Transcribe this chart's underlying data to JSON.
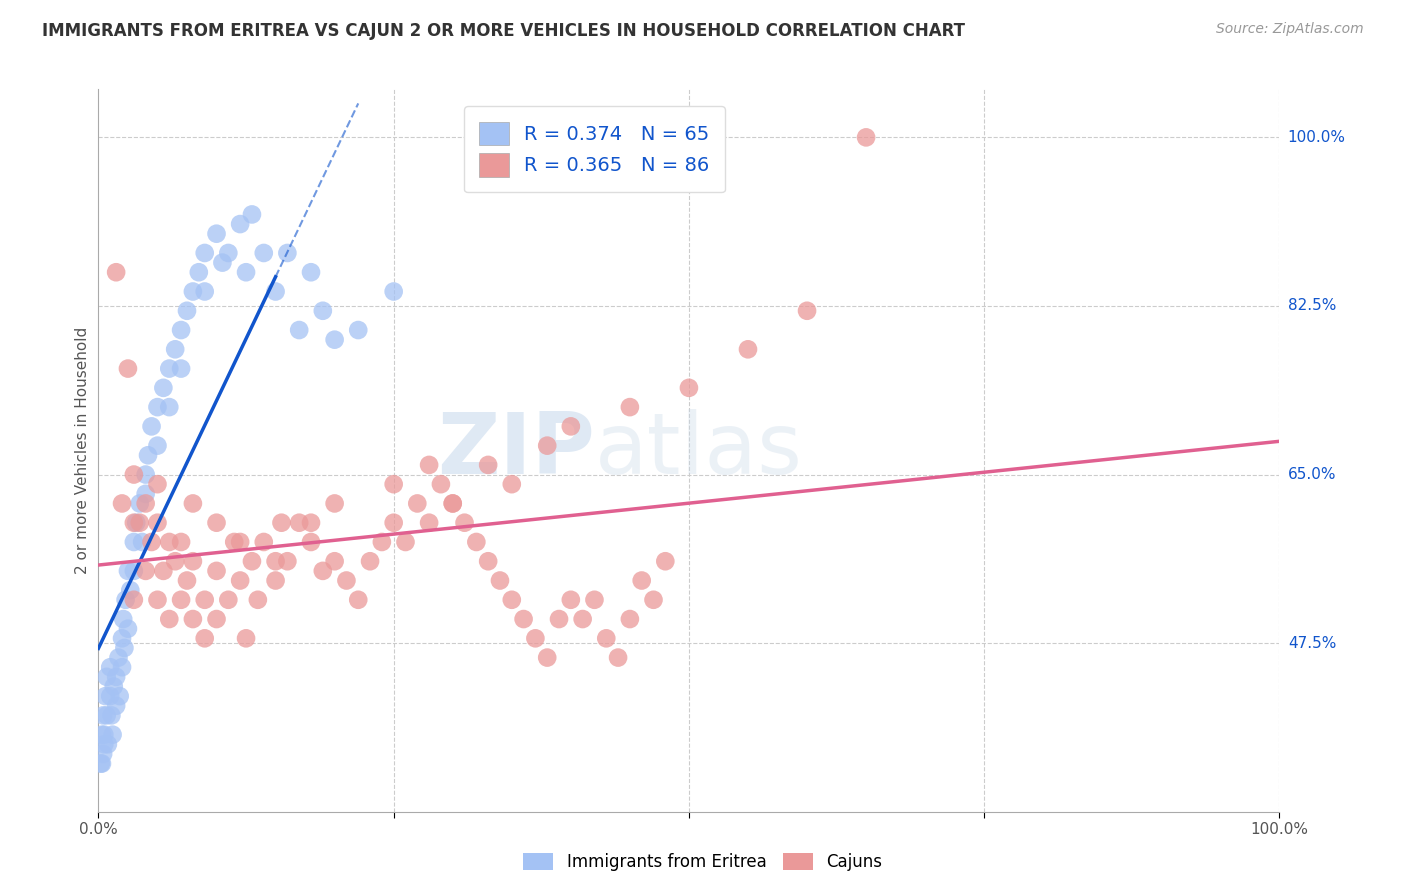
{
  "title": "IMMIGRANTS FROM ERITREA VS CAJUN 2 OR MORE VEHICLES IN HOUSEHOLD CORRELATION CHART",
  "source": "Source: ZipAtlas.com",
  "ylabel": "2 or more Vehicles in Household",
  "xlim": [
    0,
    100
  ],
  "ylim": [
    30,
    105
  ],
  "yticks": [
    47.5,
    65.0,
    82.5,
    100.0
  ],
  "xtick_labels": [
    "0.0%",
    "",
    "",
    "",
    "100.0%"
  ],
  "ytick_labels": [
    "47.5%",
    "65.0%",
    "82.5%",
    "100.0%"
  ],
  "blue_R": 0.374,
  "blue_N": 65,
  "pink_R": 0.365,
  "pink_N": 86,
  "blue_color": "#a4c2f4",
  "pink_color": "#ea9999",
  "blue_line_color": "#1155cc",
  "pink_line_color": "#e06090",
  "background_color": "#ffffff",
  "grid_color": "#cccccc",
  "legend_entries": [
    "Immigrants from Eritrea",
    "Cajuns"
  ],
  "blue_x": [
    0.3,
    0.5,
    0.7,
    0.8,
    1.0,
    1.0,
    1.1,
    1.2,
    1.3,
    1.5,
    1.5,
    1.7,
    1.8,
    2.0,
    2.0,
    2.1,
    2.2,
    2.3,
    2.5,
    2.5,
    2.7,
    3.0,
    3.0,
    3.2,
    3.5,
    3.7,
    4.0,
    4.0,
    4.2,
    4.5,
    5.0,
    5.0,
    5.5,
    6.0,
    6.0,
    6.5,
    7.0,
    7.0,
    7.5,
    8.0,
    8.5,
    9.0,
    9.0,
    10.0,
    10.5,
    11.0,
    12.0,
    12.5,
    13.0,
    14.0,
    15.0,
    16.0,
    17.0,
    18.0,
    19.0,
    20.0,
    22.0,
    25.0,
    0.2,
    0.3,
    0.4,
    0.4,
    0.5,
    0.6,
    0.7
  ],
  "blue_y": [
    35,
    38,
    40,
    37,
    42,
    45,
    40,
    38,
    43,
    44,
    41,
    46,
    42,
    48,
    45,
    50,
    47,
    52,
    49,
    55,
    53,
    58,
    55,
    60,
    62,
    58,
    65,
    63,
    67,
    70,
    72,
    68,
    74,
    76,
    72,
    78,
    80,
    76,
    82,
    84,
    86,
    88,
    84,
    90,
    87,
    88,
    91,
    86,
    92,
    88,
    84,
    88,
    80,
    86,
    82,
    79,
    80,
    84,
    35,
    38,
    36,
    40,
    37,
    42,
    44
  ],
  "pink_x": [
    1.5,
    2.0,
    2.5,
    3.0,
    3.0,
    3.5,
    4.0,
    4.0,
    4.5,
    5.0,
    5.0,
    5.5,
    6.0,
    6.5,
    7.0,
    7.0,
    7.5,
    8.0,
    8.0,
    9.0,
    9.0,
    10.0,
    10.0,
    11.0,
    11.5,
    12.0,
    12.5,
    13.0,
    13.5,
    14.0,
    15.0,
    15.5,
    16.0,
    17.0,
    18.0,
    19.0,
    20.0,
    21.0,
    22.0,
    23.0,
    24.0,
    25.0,
    26.0,
    27.0,
    28.0,
    29.0,
    30.0,
    31.0,
    32.0,
    33.0,
    34.0,
    35.0,
    36.0,
    37.0,
    38.0,
    39.0,
    40.0,
    41.0,
    42.0,
    43.0,
    44.0,
    45.0,
    46.0,
    47.0,
    48.0,
    3.0,
    5.0,
    6.0,
    8.0,
    10.0,
    12.0,
    15.0,
    18.0,
    20.0,
    25.0,
    28.0,
    30.0,
    33.0,
    35.0,
    38.0,
    40.0,
    45.0,
    50.0,
    55.0,
    60.0,
    65.0
  ],
  "pink_y": [
    86,
    62,
    76,
    52,
    65,
    60,
    55,
    62,
    58,
    52,
    60,
    55,
    50,
    56,
    52,
    58,
    54,
    50,
    56,
    52,
    48,
    55,
    50,
    52,
    58,
    54,
    48,
    56,
    52,
    58,
    54,
    60,
    56,
    60,
    58,
    55,
    56,
    54,
    52,
    56,
    58,
    60,
    58,
    62,
    60,
    64,
    62,
    60,
    58,
    56,
    54,
    52,
    50,
    48,
    46,
    50,
    52,
    50,
    52,
    48,
    46,
    50,
    54,
    52,
    56,
    60,
    64,
    58,
    62,
    60,
    58,
    56,
    60,
    62,
    64,
    66,
    62,
    66,
    64,
    68,
    70,
    72,
    74,
    78,
    82,
    100
  ]
}
